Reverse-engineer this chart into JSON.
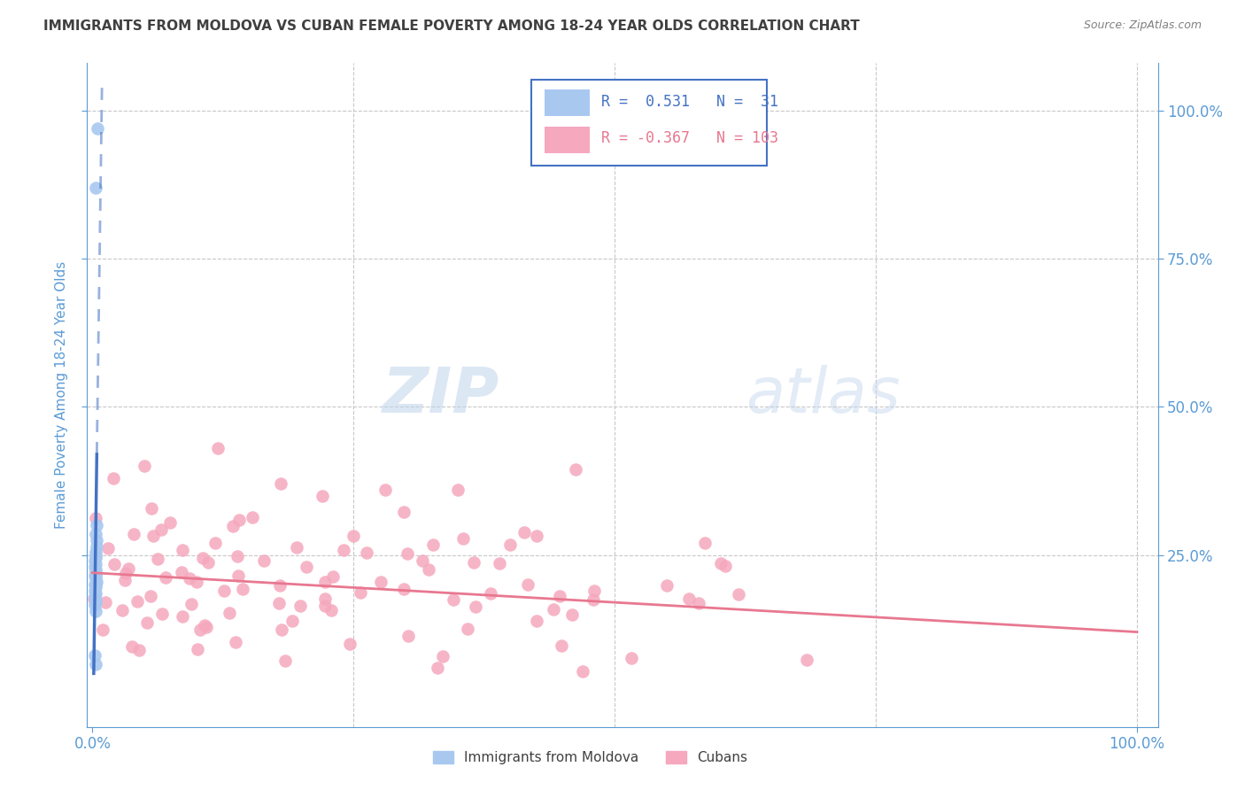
{
  "title": "IMMIGRANTS FROM MOLDOVA VS CUBAN FEMALE POVERTY AMONG 18-24 YEAR OLDS CORRELATION CHART",
  "source": "Source: ZipAtlas.com",
  "ylabel": "Female Poverty Among 18-24 Year Olds",
  "watermark_zip": "ZIP",
  "watermark_atlas": "atlas",
  "legend_blue_r": "0.531",
  "legend_blue_n": "31",
  "legend_pink_r": "-0.367",
  "legend_pink_n": "103",
  "blue_color": "#A8C8F0",
  "pink_color": "#F5A8BE",
  "blue_line_color": "#4472C4",
  "pink_line_color": "#E87890",
  "axis_color": "#5B9BD5",
  "title_color": "#404040",
  "source_color": "#808080",
  "grid_color": "#C8C8C8",
  "blue_scatter_x": [
    0.005,
    0.003,
    0.004,
    0.003,
    0.004,
    0.004,
    0.003,
    0.003,
    0.003,
    0.002,
    0.003,
    0.002,
    0.003,
    0.003,
    0.003,
    0.003,
    0.004,
    0.002,
    0.003,
    0.002,
    0.003,
    0.002,
    0.003,
    0.003,
    0.002,
    0.003,
    0.002,
    0.003,
    0.003,
    0.003,
    0.002
  ],
  "blue_scatter_y": [
    0.97,
    0.87,
    0.3,
    0.285,
    0.275,
    0.265,
    0.255,
    0.25,
    0.245,
    0.24,
    0.235,
    0.23,
    0.225,
    0.22,
    0.215,
    0.21,
    0.205,
    0.2,
    0.195,
    0.19,
    0.185,
    0.18,
    0.175,
    0.17,
    0.165,
    0.155,
    0.08,
    0.065,
    0.22,
    0.2,
    0.215
  ],
  "xlim": [
    -0.005,
    1.02
  ],
  "ylim": [
    -0.04,
    1.08
  ],
  "pink_line_x0": 0.0,
  "pink_line_x1": 1.0,
  "pink_line_y0": 0.22,
  "pink_line_y1": 0.12
}
